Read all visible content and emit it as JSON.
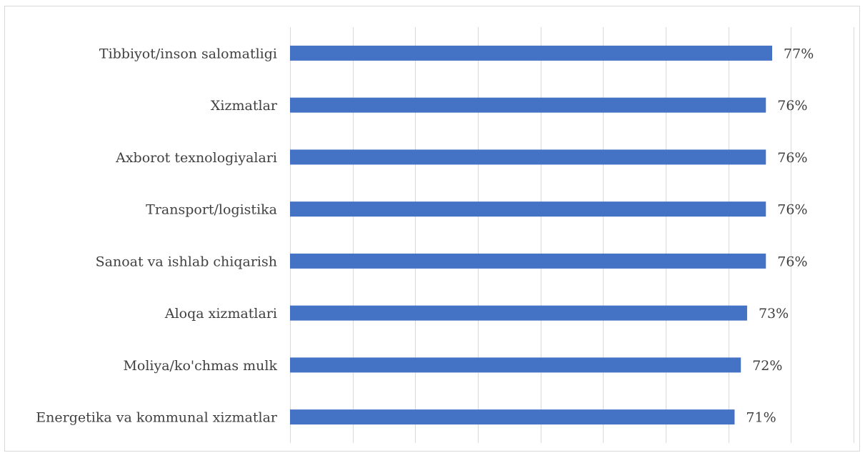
{
  "chart_data": {
    "type": "bar",
    "orientation": "horizontal",
    "categories": [
      "Tibbiyot/inson salomatligi",
      "Xizmatlar",
      "Axborot texnologiyalari",
      "Transport/logistika",
      "Sanoat va ishlab chiqarish",
      "Aloqa xizmatlari",
      "Moliya/ko'chmas mulk",
      "Energetika va kommunal xizmatlar"
    ],
    "values": [
      77,
      76,
      76,
      76,
      76,
      73,
      72,
      71
    ],
    "data_labels": [
      "77%",
      "76%",
      "76%",
      "76%",
      "76%",
      "73%",
      "72%",
      "71%"
    ],
    "xlim": [
      0,
      90
    ],
    "grid": true,
    "bar_color": "#4472C4",
    "title": "",
    "xlabel": "",
    "ylabel": ""
  }
}
